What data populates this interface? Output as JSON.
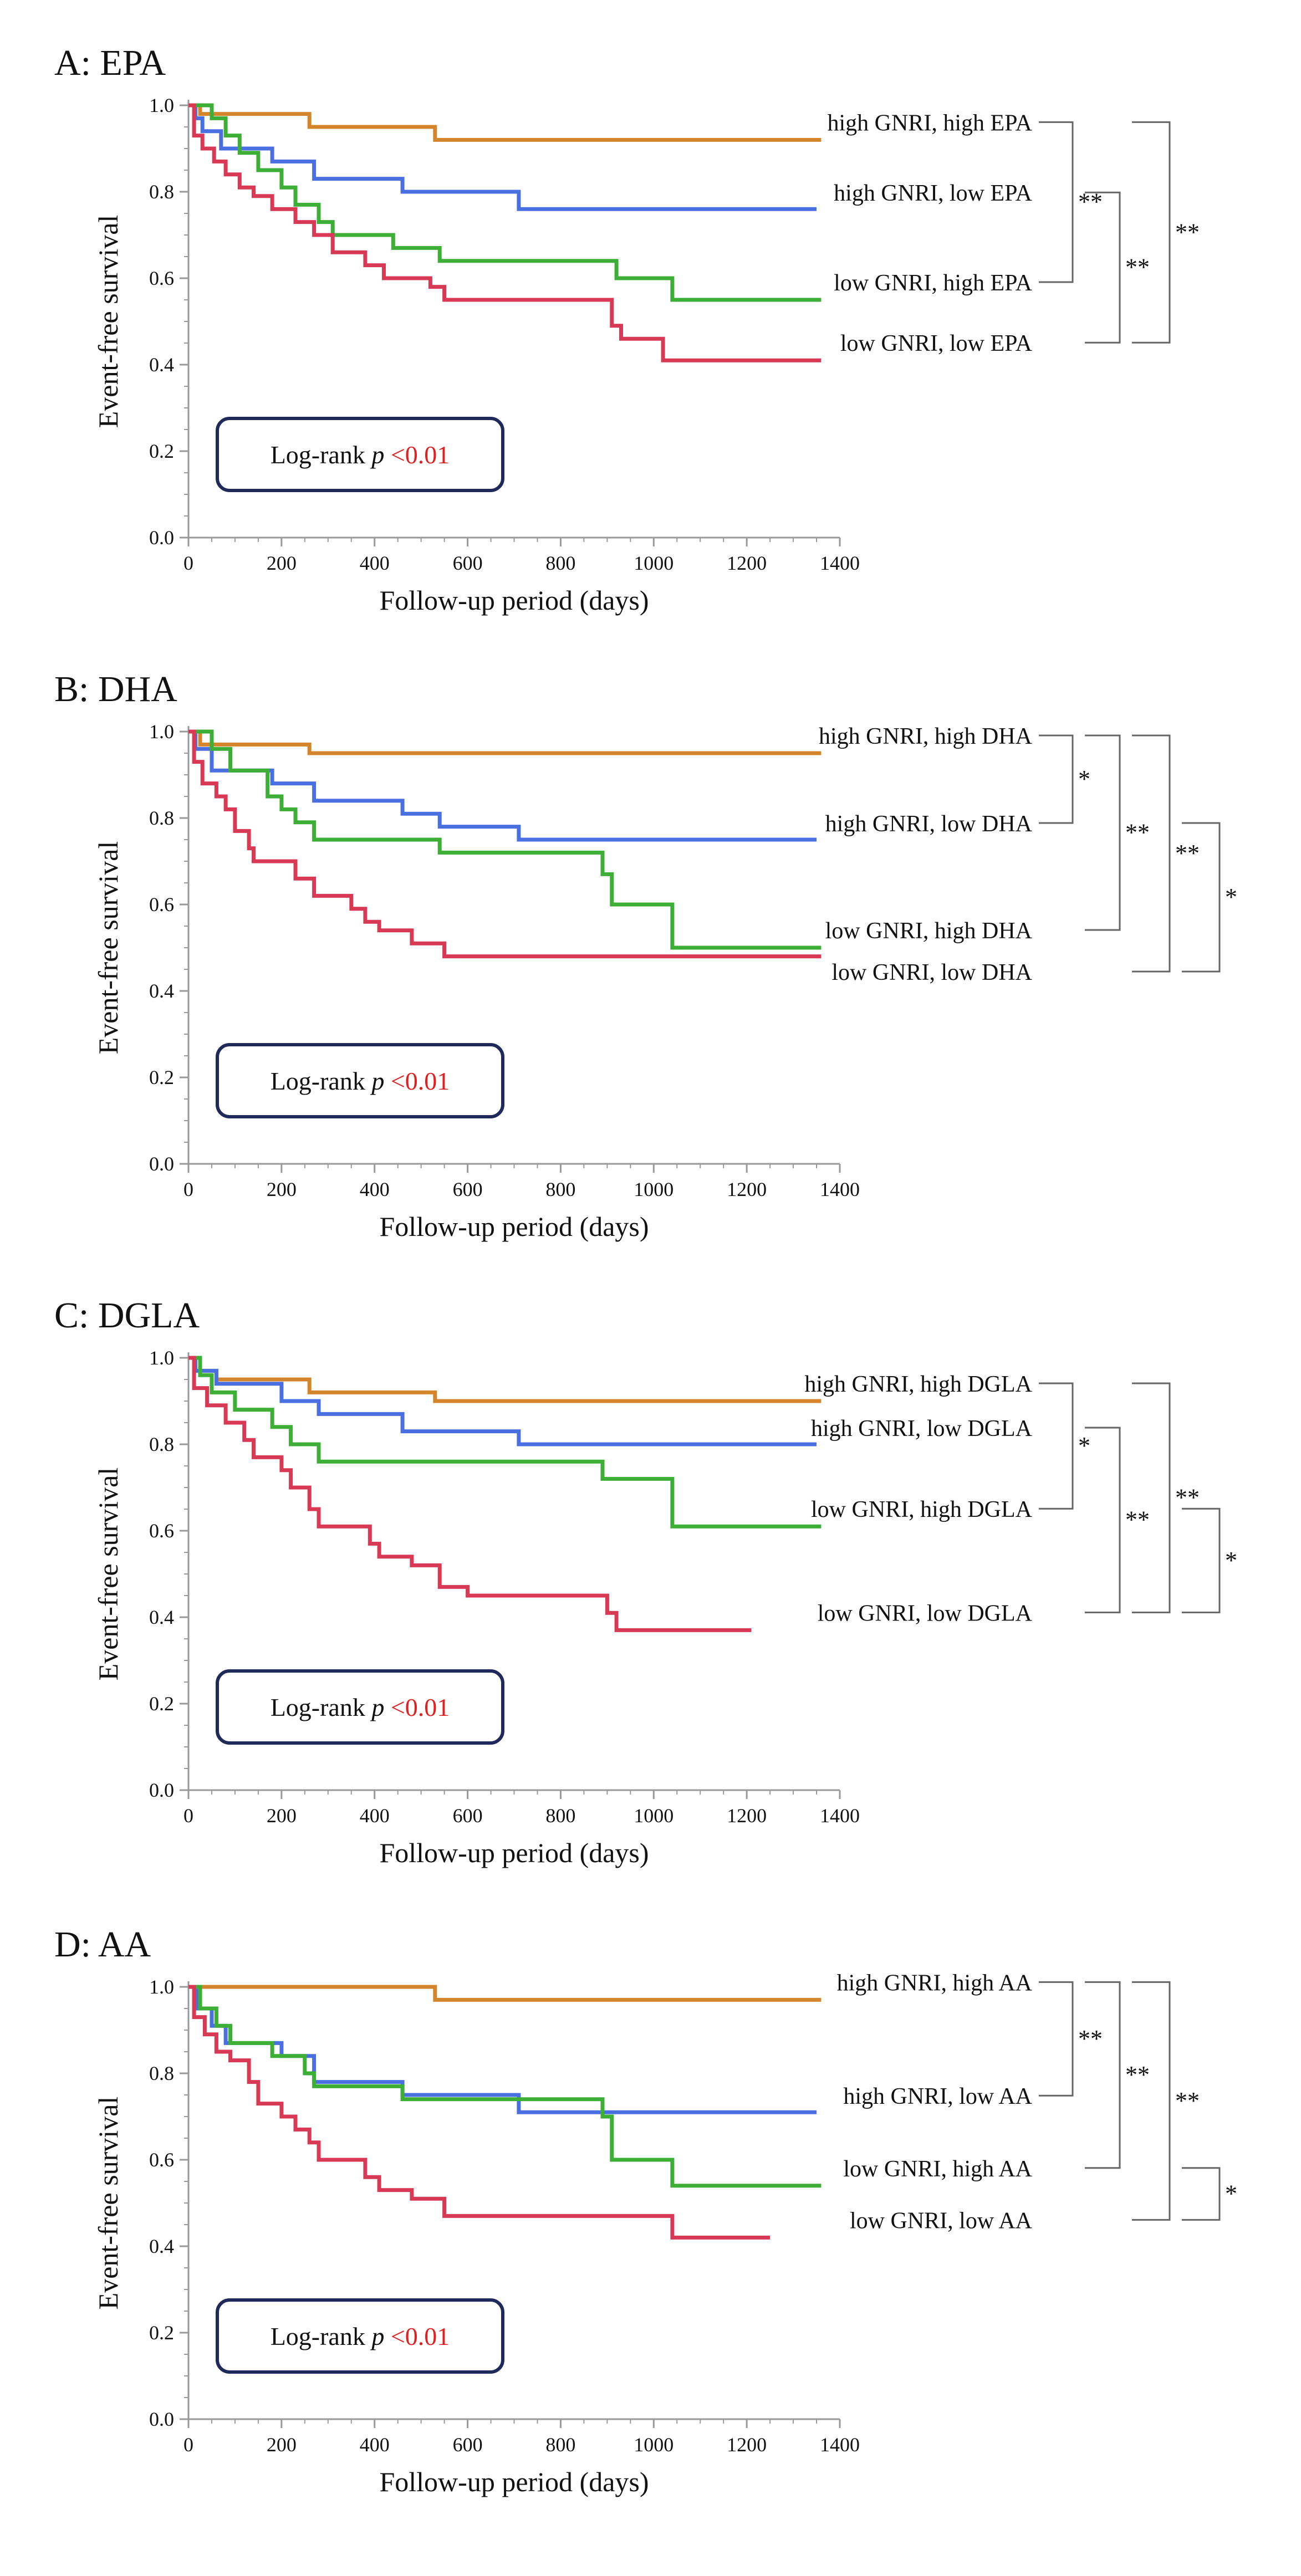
{
  "colors": {
    "orange": "#D4842B",
    "blue": "#4A6FE0",
    "green": "#3DAE36",
    "red": "#D83A55",
    "axis": "#999999",
    "bracket": "#666666",
    "box_border": "#1F2A5A",
    "pvalue": "#E02020",
    "text": "#111111"
  },
  "chart_data": [
    {
      "type": "line",
      "step": true,
      "title": "A: EPA",
      "xlabel": "Follow-up period (days)",
      "ylabel": "Event-free survival",
      "xlim": [
        0,
        1400
      ],
      "ylim": [
        0,
        1.0
      ],
      "xticks": [
        0,
        200,
        400,
        600,
        800,
        1000,
        1200,
        1400
      ],
      "yticks": [
        0.0,
        0.2,
        0.4,
        0.6,
        0.8,
        1.0
      ],
      "logrank": {
        "prefix": "Log-rank ",
        "p": "p",
        "value": "<0.01"
      },
      "series": [
        {
          "name": "high GNRI, high EPA",
          "color": "orange",
          "points": [
            [
              0,
              1.0
            ],
            [
              25,
              0.98
            ],
            [
              260,
              0.95
            ],
            [
              530,
              0.92
            ],
            [
              1360,
              0.92
            ]
          ]
        },
        {
          "name": "high GNRI, low EPA",
          "color": "blue",
          "points": [
            [
              0,
              1.0
            ],
            [
              15,
              0.97
            ],
            [
              30,
              0.94
            ],
            [
              70,
              0.9
            ],
            [
              180,
              0.87
            ],
            [
              270,
              0.83
            ],
            [
              460,
              0.8
            ],
            [
              710,
              0.76
            ],
            [
              1350,
              0.76
            ]
          ]
        },
        {
          "name": "low GNRI, high EPA",
          "color": "green",
          "points": [
            [
              0,
              1.0
            ],
            [
              50,
              0.97
            ],
            [
              80,
              0.93
            ],
            [
              110,
              0.89
            ],
            [
              150,
              0.85
            ],
            [
              200,
              0.81
            ],
            [
              230,
              0.77
            ],
            [
              280,
              0.73
            ],
            [
              310,
              0.7
            ],
            [
              440,
              0.67
            ],
            [
              540,
              0.64
            ],
            [
              920,
              0.6
            ],
            [
              1040,
              0.55
            ],
            [
              1360,
              0.55
            ]
          ]
        },
        {
          "name": "low GNRI, low EPA",
          "color": "red",
          "points": [
            [
              0,
              1.0
            ],
            [
              12,
              0.93
            ],
            [
              30,
              0.9
            ],
            [
              55,
              0.87
            ],
            [
              80,
              0.84
            ],
            [
              110,
              0.81
            ],
            [
              140,
              0.79
            ],
            [
              180,
              0.76
            ],
            [
              230,
              0.73
            ],
            [
              270,
              0.7
            ],
            [
              310,
              0.66
            ],
            [
              380,
              0.63
            ],
            [
              420,
              0.6
            ],
            [
              520,
              0.58
            ],
            [
              550,
              0.55
            ],
            [
              910,
              0.49
            ],
            [
              930,
              0.46
            ],
            [
              1020,
              0.41
            ],
            [
              1360,
              0.41
            ]
          ]
        }
      ],
      "comparisons": [
        {
          "from": 0,
          "to": 2,
          "sig": "**"
        },
        {
          "from": 1,
          "to": 3,
          "sig": "**"
        },
        {
          "from": 0,
          "to": 3,
          "sig": "**"
        }
      ]
    },
    {
      "type": "line",
      "step": true,
      "title": "B: DHA",
      "xlabel": "Follow-up period (days)",
      "ylabel": "Event-free survival",
      "xlim": [
        0,
        1400
      ],
      "ylim": [
        0,
        1.0
      ],
      "xticks": [
        0,
        200,
        400,
        600,
        800,
        1000,
        1200,
        1400
      ],
      "yticks": [
        0.0,
        0.2,
        0.4,
        0.6,
        0.8,
        1.0
      ],
      "logrank": {
        "prefix": "Log-rank ",
        "p": "p",
        "value": "<0.01"
      },
      "series": [
        {
          "name": "high GNRI, high DHA",
          "color": "orange",
          "points": [
            [
              0,
              1.0
            ],
            [
              25,
              0.97
            ],
            [
              260,
              0.95
            ],
            [
              1360,
              0.95
            ]
          ]
        },
        {
          "name": "high GNRI, low DHA",
          "color": "blue",
          "points": [
            [
              0,
              1.0
            ],
            [
              15,
              0.96
            ],
            [
              50,
              0.91
            ],
            [
              180,
              0.88
            ],
            [
              270,
              0.84
            ],
            [
              460,
              0.81
            ],
            [
              540,
              0.78
            ],
            [
              710,
              0.75
            ],
            [
              1350,
              0.75
            ]
          ]
        },
        {
          "name": "low GNRI, high DHA",
          "color": "green",
          "points": [
            [
              0,
              1.0
            ],
            [
              50,
              0.96
            ],
            [
              90,
              0.91
            ],
            [
              170,
              0.85
            ],
            [
              200,
              0.82
            ],
            [
              230,
              0.79
            ],
            [
              270,
              0.75
            ],
            [
              540,
              0.72
            ],
            [
              890,
              0.67
            ],
            [
              910,
              0.6
            ],
            [
              1040,
              0.5
            ],
            [
              1360,
              0.5
            ]
          ]
        },
        {
          "name": "low GNRI, low DHA",
          "color": "red",
          "points": [
            [
              0,
              1.0
            ],
            [
              12,
              0.93
            ],
            [
              30,
              0.88
            ],
            [
              60,
              0.85
            ],
            [
              80,
              0.82
            ],
            [
              100,
              0.77
            ],
            [
              130,
              0.73
            ],
            [
              140,
              0.7
            ],
            [
              230,
              0.66
            ],
            [
              270,
              0.62
            ],
            [
              350,
              0.59
            ],
            [
              380,
              0.56
            ],
            [
              410,
              0.54
            ],
            [
              480,
              0.51
            ],
            [
              550,
              0.48
            ],
            [
              1360,
              0.48
            ]
          ]
        }
      ],
      "comparisons": [
        {
          "from": 0,
          "to": 1,
          "sig": "*"
        },
        {
          "from": 0,
          "to": 2,
          "sig": "**"
        },
        {
          "from": 0,
          "to": 3,
          "sig": "**"
        },
        {
          "from": 1,
          "to": 3,
          "sig": "*"
        }
      ]
    },
    {
      "type": "line",
      "step": true,
      "title": "C: DGLA",
      "xlabel": "Follow-up period (days)",
      "ylabel": "Event-free survival",
      "xlim": [
        0,
        1400
      ],
      "ylim": [
        0,
        1.0
      ],
      "xticks": [
        0,
        200,
        400,
        600,
        800,
        1000,
        1200,
        1400
      ],
      "yticks": [
        0.0,
        0.2,
        0.4,
        0.6,
        0.8,
        1.0
      ],
      "logrank": {
        "prefix": "Log-rank ",
        "p": "p",
        "value": "<0.01"
      },
      "series": [
        {
          "name": "high GNRI, high DGLA",
          "color": "orange",
          "points": [
            [
              0,
              1.0
            ],
            [
              25,
              0.97
            ],
            [
              60,
              0.95
            ],
            [
              260,
              0.92
            ],
            [
              530,
              0.9
            ],
            [
              1360,
              0.9
            ]
          ]
        },
        {
          "name": "high GNRI, low DGLA",
          "color": "blue",
          "points": [
            [
              0,
              1.0
            ],
            [
              15,
              0.97
            ],
            [
              60,
              0.94
            ],
            [
              200,
              0.9
            ],
            [
              280,
              0.87
            ],
            [
              460,
              0.83
            ],
            [
              710,
              0.8
            ],
            [
              1350,
              0.8
            ]
          ]
        },
        {
          "name": "low GNRI, high DGLA",
          "color": "green",
          "points": [
            [
              0,
              1.0
            ],
            [
              25,
              0.96
            ],
            [
              50,
              0.92
            ],
            [
              100,
              0.88
            ],
            [
              180,
              0.84
            ],
            [
              220,
              0.8
            ],
            [
              280,
              0.76
            ],
            [
              890,
              0.72
            ],
            [
              1040,
              0.61
            ],
            [
              1360,
              0.61
            ]
          ]
        },
        {
          "name": "low GNRI, low DGLA",
          "color": "red",
          "points": [
            [
              0,
              1.0
            ],
            [
              12,
              0.93
            ],
            [
              40,
              0.89
            ],
            [
              80,
              0.85
            ],
            [
              120,
              0.81
            ],
            [
              140,
              0.77
            ],
            [
              200,
              0.74
            ],
            [
              220,
              0.7
            ],
            [
              260,
              0.65
            ],
            [
              280,
              0.61
            ],
            [
              390,
              0.57
            ],
            [
              410,
              0.54
            ],
            [
              480,
              0.52
            ],
            [
              540,
              0.47
            ],
            [
              600,
              0.45
            ],
            [
              900,
              0.41
            ],
            [
              920,
              0.37
            ],
            [
              1210,
              0.37
            ]
          ]
        }
      ],
      "comparisons": [
        {
          "from": 0,
          "to": 2,
          "sig": "*"
        },
        {
          "from": 1,
          "to": 3,
          "sig": "**"
        },
        {
          "from": 0,
          "to": 3,
          "sig": "**"
        },
        {
          "from": 2,
          "to": 3,
          "sig": "*"
        }
      ]
    },
    {
      "type": "line",
      "step": true,
      "title": "D: AA",
      "xlabel": "Follow-up period (days)",
      "ylabel": "Event-free survival",
      "xlim": [
        0,
        1400
      ],
      "ylim": [
        0,
        1.0
      ],
      "xticks": [
        0,
        200,
        400,
        600,
        800,
        1000,
        1200,
        1400
      ],
      "yticks": [
        0.0,
        0.2,
        0.4,
        0.6,
        0.8,
        1.0
      ],
      "logrank": {
        "prefix": "Log-rank ",
        "p": "p",
        "value": "<0.01"
      },
      "series": [
        {
          "name": "high GNRI, high AA",
          "color": "orange",
          "points": [
            [
              0,
              1.0
            ],
            [
              530,
              0.97
            ],
            [
              1360,
              0.97
            ]
          ]
        },
        {
          "name": "high GNRI, low AA",
          "color": "blue",
          "points": [
            [
              0,
              1.0
            ],
            [
              20,
              0.95
            ],
            [
              50,
              0.91
            ],
            [
              80,
              0.87
            ],
            [
              200,
              0.84
            ],
            [
              270,
              0.78
            ],
            [
              460,
              0.75
            ],
            [
              710,
              0.71
            ],
            [
              1350,
              0.71
            ]
          ]
        },
        {
          "name": "low GNRI, high AA",
          "color": "green",
          "points": [
            [
              0,
              1.0
            ],
            [
              25,
              0.95
            ],
            [
              60,
              0.91
            ],
            [
              90,
              0.87
            ],
            [
              180,
              0.84
            ],
            [
              250,
              0.8
            ],
            [
              270,
              0.77
            ],
            [
              460,
              0.74
            ],
            [
              890,
              0.7
            ],
            [
              910,
              0.6
            ],
            [
              1040,
              0.54
            ],
            [
              1360,
              0.54
            ]
          ]
        },
        {
          "name": "low GNRI, low AA",
          "color": "red",
          "points": [
            [
              0,
              1.0
            ],
            [
              12,
              0.93
            ],
            [
              35,
              0.89
            ],
            [
              60,
              0.85
            ],
            [
              90,
              0.83
            ],
            [
              130,
              0.78
            ],
            [
              150,
              0.73
            ],
            [
              200,
              0.7
            ],
            [
              230,
              0.67
            ],
            [
              260,
              0.64
            ],
            [
              280,
              0.6
            ],
            [
              380,
              0.56
            ],
            [
              410,
              0.53
            ],
            [
              480,
              0.51
            ],
            [
              550,
              0.47
            ],
            [
              1040,
              0.42
            ],
            [
              1250,
              0.42
            ]
          ]
        }
      ],
      "comparisons": [
        {
          "from": 0,
          "to": 1,
          "sig": "**"
        },
        {
          "from": 0,
          "to": 2,
          "sig": "**"
        },
        {
          "from": 0,
          "to": 3,
          "sig": "**"
        },
        {
          "from": 2,
          "to": 3,
          "sig": "*"
        }
      ]
    }
  ]
}
